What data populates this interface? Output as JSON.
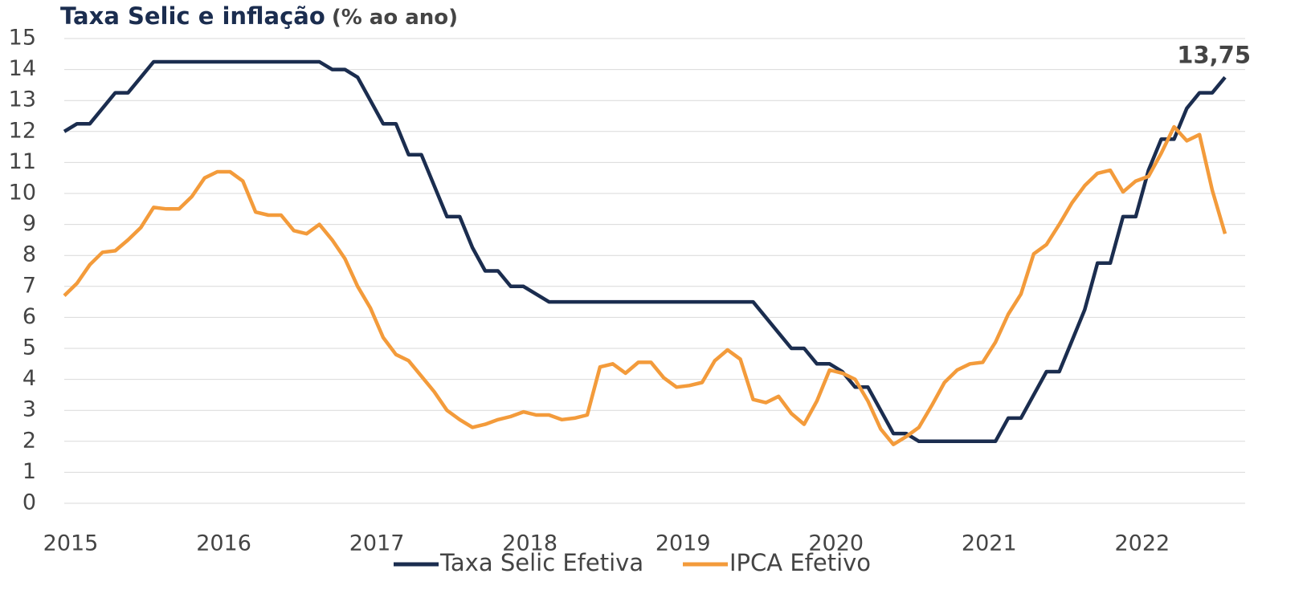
{
  "chart_data": {
    "type": "line",
    "title": "Taxa Selic e inflação",
    "subtitle": "(% ao ano)",
    "categories": [
      "2015",
      null,
      null,
      null,
      null,
      null,
      null,
      null,
      null,
      null,
      null,
      null,
      "2016",
      null,
      null,
      null,
      null,
      null,
      null,
      null,
      null,
      null,
      null,
      null,
      "2017",
      null,
      null,
      null,
      null,
      null,
      null,
      null,
      null,
      null,
      null,
      null,
      "2018",
      null,
      null,
      null,
      null,
      null,
      null,
      null,
      null,
      null,
      null,
      null,
      "2019",
      null,
      null,
      null,
      null,
      null,
      null,
      null,
      null,
      null,
      null,
      null,
      "2020",
      null,
      null,
      null,
      null,
      null,
      null,
      null,
      null,
      null,
      null,
      null,
      "2021",
      null,
      null,
      null,
      null,
      null,
      null,
      null,
      null,
      null,
      null,
      null,
      "2022",
      null,
      null,
      null,
      null,
      null,
      null,
      null
    ],
    "series": [
      {
        "name": "Taxa Selic Efetiva",
        "color": "#1b2d4f",
        "values": [
          12,
          12.25,
          12.25,
          12.75,
          13.25,
          13.25,
          13.75,
          14.25,
          14.25,
          14.25,
          14.25,
          14.25,
          14.25,
          14.25,
          14.25,
          14.25,
          14.25,
          14.25,
          14.25,
          14.25,
          14.25,
          14,
          14,
          13.75,
          13,
          12.25,
          12.25,
          11.25,
          11.25,
          10.25,
          9.25,
          9.25,
          8.25,
          7.5,
          7.5,
          7,
          7,
          6.75,
          6.5,
          6.5,
          6.5,
          6.5,
          6.5,
          6.5,
          6.5,
          6.5,
          6.5,
          6.5,
          6.5,
          6.5,
          6.5,
          6.5,
          6.5,
          6.5,
          6.5,
          6,
          5.5,
          5,
          5,
          4.5,
          4.5,
          4.25,
          3.75,
          3.75,
          3,
          2.25,
          2.25,
          2,
          2,
          2,
          2,
          2,
          2,
          2,
          2.75,
          2.75,
          3.5,
          4.25,
          4.25,
          5.25,
          6.25,
          7.75,
          7.75,
          9.25,
          9.25,
          10.75,
          11.75,
          11.75,
          12.75,
          13.25,
          13.25,
          13.75
        ],
        "value_labels": [
          null,
          null,
          null,
          null,
          null,
          null,
          null,
          null,
          null,
          null,
          null,
          null,
          null,
          null,
          null,
          null,
          null,
          null,
          null,
          null,
          null,
          null,
          null,
          null,
          null,
          null,
          null,
          null,
          null,
          null,
          null,
          null,
          null,
          null,
          null,
          null,
          null,
          null,
          null,
          null,
          null,
          null,
          null,
          null,
          null,
          null,
          null,
          null,
          null,
          null,
          null,
          null,
          null,
          null,
          null,
          null,
          null,
          null,
          null,
          null,
          null,
          null,
          null,
          null,
          null,
          null,
          null,
          null,
          null,
          null,
          null,
          null,
          null,
          null,
          null,
          null,
          null,
          null,
          null,
          null,
          null,
          null,
          null,
          null,
          null,
          null,
          null,
          null,
          null,
          null,
          null,
          "13,75"
        ]
      },
      {
        "name": "IPCA Efetivo",
        "color": "#f39b3b",
        "values": [
          6.7,
          7.1,
          7.7,
          8.1,
          8.15,
          8.5,
          8.9,
          9.55,
          9.5,
          9.5,
          9.9,
          10.5,
          10.7,
          10.7,
          10.4,
          9.4,
          9.3,
          9.3,
          8.8,
          8.7,
          9,
          8.5,
          7.9,
          7,
          6.3,
          5.35,
          4.8,
          4.6,
          4.1,
          3.6,
          3,
          2.7,
          2.45,
          2.55,
          2.7,
          2.8,
          2.95,
          2.85,
          2.85,
          2.7,
          2.75,
          2.85,
          4.4,
          4.5,
          4.2,
          4.55,
          4.55,
          4.05,
          3.75,
          3.8,
          3.9,
          4.6,
          4.95,
          4.65,
          3.35,
          3.25,
          3.45,
          2.9,
          2.55,
          3.3,
          4.3,
          4.2,
          4,
          3.3,
          2.4,
          1.9,
          2.15,
          2.45,
          3.15,
          3.9,
          4.3,
          4.5,
          4.55,
          5.2,
          6.1,
          6.75,
          8.05,
          8.35,
          9,
          9.7,
          10.25,
          10.65,
          10.75,
          10.05,
          10.4,
          10.55,
          11.3,
          12.15,
          11.7,
          11.9,
          10.1,
          8.7
        ]
      }
    ],
    "ylim": [
      0,
      15
    ],
    "yticks": [
      0,
      1,
      2,
      3,
      4,
      5,
      6,
      7,
      8,
      9,
      10,
      11,
      12,
      13,
      14,
      15
    ],
    "grid": true,
    "legend": "bottom"
  }
}
